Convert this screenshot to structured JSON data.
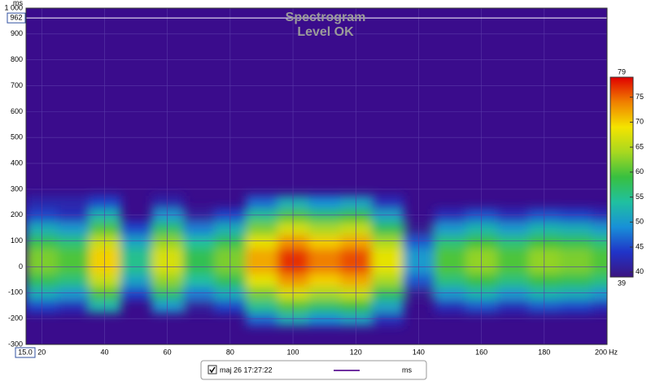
{
  "chart_data": {
    "type": "heatmap",
    "title": "Spectrogram",
    "subtitle": "Level OK",
    "y_unit": "ms",
    "x_unit": "Hz",
    "xlim": [
      15,
      200
    ],
    "x_start_label": "15.0",
    "xticks": [
      20,
      40,
      60,
      80,
      100,
      120,
      140,
      160,
      180,
      200
    ],
    "ylim": [
      -300,
      1000
    ],
    "yticks": [
      -300,
      -200,
      -100,
      0,
      100,
      200,
      300,
      400,
      500,
      600,
      700,
      800,
      900,
      {
        "value": 1000,
        "label": "1 000"
      }
    ],
    "cursor": 962,
    "x": [
      20,
      30,
      40,
      50,
      60,
      70,
      80,
      90,
      100,
      110,
      120,
      130,
      140,
      150,
      160,
      170,
      180,
      190,
      200
    ],
    "y": [
      -200,
      -150,
      -100,
      -50,
      0,
      50,
      100,
      150,
      200,
      250
    ],
    "z": [
      [
        null,
        null,
        null,
        null,
        null,
        null,
        null,
        47,
        52,
        49,
        51,
        43,
        null,
        null,
        null,
        null,
        null,
        null,
        null
      ],
      [
        45,
        43,
        53,
        null,
        50,
        41,
        45,
        55,
        60,
        57,
        59,
        51,
        null,
        43,
        46,
        43,
        46,
        45,
        43
      ],
      [
        52,
        50,
        60,
        45,
        57,
        48,
        52,
        62,
        67,
        64,
        66,
        58,
        40,
        50,
        53,
        50,
        53,
        52,
        50
      ],
      [
        58,
        56,
        66,
        51,
        63,
        54,
        58,
        68,
        73,
        70,
        72,
        64,
        46,
        56,
        59,
        56,
        59,
        58,
        56
      ],
      [
        62,
        60,
        70,
        55,
        67,
        58,
        62,
        72,
        77,
        74,
        76,
        68,
        50,
        60,
        63,
        60,
        63,
        62,
        60
      ],
      [
        62,
        60,
        70,
        55,
        67,
        58,
        62,
        72,
        77,
        74,
        76,
        68,
        50,
        60,
        63,
        60,
        63,
        62,
        60
      ],
      [
        58,
        56,
        66,
        51,
        63,
        54,
        58,
        68,
        73,
        70,
        72,
        64,
        46,
        56,
        59,
        56,
        59,
        58,
        56
      ],
      [
        52,
        50,
        60,
        45,
        57,
        48,
        52,
        62,
        67,
        64,
        66,
        58,
        40,
        50,
        53,
        50,
        53,
        52,
        50
      ],
      [
        45,
        43,
        53,
        null,
        50,
        41,
        45,
        55,
        60,
        57,
        59,
        51,
        null,
        43,
        46,
        43,
        46,
        45,
        43
      ],
      [
        42,
        42,
        45,
        null,
        42,
        null,
        null,
        47,
        52,
        49,
        51,
        43,
        null,
        null,
        null,
        null,
        null,
        null,
        null
      ]
    ],
    "zlim": [
      39,
      79
    ],
    "zticks": [
      40,
      45,
      50,
      55,
      60,
      65,
      70,
      75
    ],
    "colorscale": [
      "#3c1480",
      "#2034c8",
      "#1890d8",
      "#20c0a0",
      "#38c040",
      "#a8d820",
      "#f4e400",
      "#f08000",
      "#e00000"
    ],
    "background": "#3a0c8c",
    "legend": {
      "label": "maj 26 17:27:22",
      "color": "#7030a0",
      "unit": "ms"
    }
  }
}
